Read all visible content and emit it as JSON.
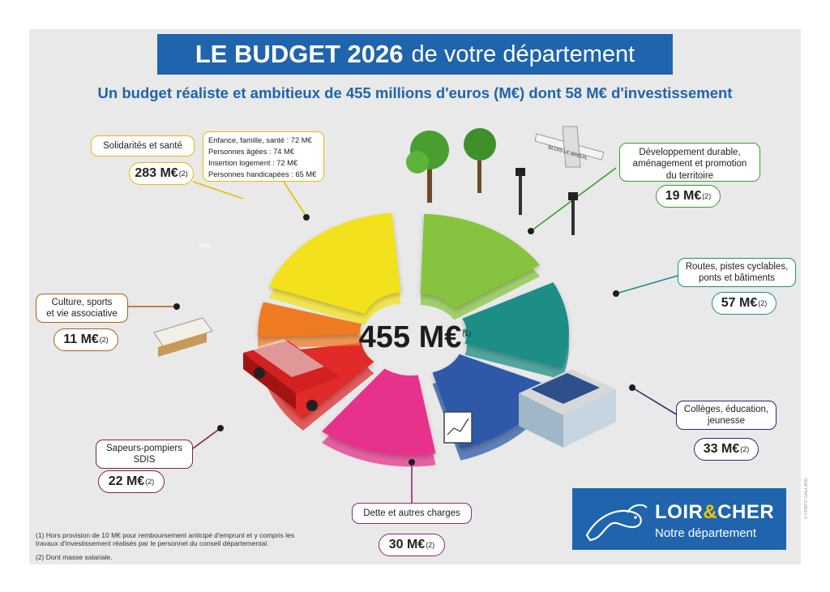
{
  "header": {
    "title_bold": "LE BUDGET 2026",
    "title_rest": "de votre département",
    "subtitle": "Un budget réaliste et ambitieux de 455 millions d'euros (M€) dont 58 M€ d'investissement"
  },
  "total": {
    "value": "455 M€",
    "note": "(1)"
  },
  "chart_data": {
    "type": "pie",
    "title": "LE BUDGET 2026 de votre département",
    "unit": "M€",
    "total": 455,
    "slices": [
      {
        "label": "Solidarités et santé",
        "value": 283,
        "display": "283 M€",
        "note": "(2)",
        "color": "#f2e11a"
      },
      {
        "label": "Développement durable, aménagement et promotion du territoire",
        "value": 19,
        "display": "19 M€",
        "note": "(2)",
        "color": "#86c440"
      },
      {
        "label": "Routes, pistes cyclables, ponts et bâtiments",
        "value": 57,
        "display": "57 M€",
        "note": "(2)",
        "color": "#1d8e86"
      },
      {
        "label": "Collèges, éducation, jeunesse",
        "value": 33,
        "display": "33 M€",
        "note": "(2)",
        "color": "#2f59a8"
      },
      {
        "label": "Dette et autres charges",
        "value": 30,
        "display": "30 M€",
        "note": "(2)",
        "color": "#e6318b"
      },
      {
        "label": "Sapeurs-pompiers SDIS",
        "value": 22,
        "display": "22 M€",
        "note": "(2)",
        "color": "#e12a2a"
      },
      {
        "label": "Culture, sports et vie associative",
        "value": 11,
        "display": "11 M€",
        "note": "(2)",
        "color": "#ee7a22"
      }
    ],
    "solidarity_breakdown": [
      {
        "label": "Enfance, famille, santé",
        "value": 72,
        "display": "Enfance, famille, santé : 72 M€"
      },
      {
        "label": "Personnes âgées",
        "value": 74,
        "display": "Personnes âgées : 74 M€"
      },
      {
        "label": "Insertion logement",
        "value": 72,
        "display": "Insertion logement : 72 M€"
      },
      {
        "label": "Personnes handicapées",
        "value": 65,
        "display": "Personnes handicapées : 65 M€"
      }
    ]
  },
  "labels": {
    "solidarites": "Solidarités et santé",
    "developpement": [
      "Développement durable,",
      "aménagement et promotion",
      "du territoire"
    ],
    "routes": [
      "Routes, pistes cyclables,",
      "ponts et bâtiments"
    ],
    "colleges": [
      "Collèges, éducation,",
      "jeunesse"
    ],
    "dette": "Dette et autres charges",
    "pompiers": [
      "Sapeurs-pompiers",
      "SDIS"
    ],
    "culture": [
      "Culture, sports",
      "et vie associative"
    ]
  },
  "footnotes": {
    "note1_line1": "(1) Hors provision de 10 M€ pour remboursement anticipé d'emprunt et y compris les",
    "note1_line2": "travaux d'investissement réalisés par le personnel du conseil départemental.",
    "note2": "(2) Dont masse salariale."
  },
  "illustration_texts": {
    "plane_banner": "BLOIS-LE BREUIL",
    "protest_sign": "PAIX"
  },
  "logo": {
    "name_part1": "LOIR",
    "amp": "&",
    "name_part2": "CHER",
    "tagline": "Notre département"
  },
  "credit": "© CONTIC GAILLARD"
}
